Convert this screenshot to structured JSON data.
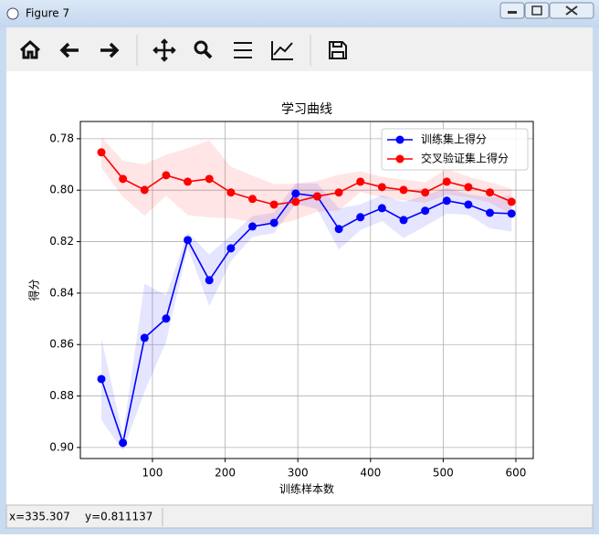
{
  "window": {
    "title": "Figure 7"
  },
  "status": {
    "x": "x=335.307",
    "y": "y=0.811137"
  },
  "chart_data": {
    "type": "line",
    "title": "学习曲线",
    "x_label": "训练样本数",
    "y_label": "得分",
    "x": [
      29.7,
      59.4,
      89.1,
      118.8,
      148.5,
      178.2,
      207.9,
      237.6,
      267.3,
      297,
      326.7,
      356.4,
      386.1,
      415.8,
      445.5,
      475.2,
      504.9,
      534.6,
      564.3,
      594
    ],
    "series": [
      {
        "name": "训练集上得分",
        "color": "#0000ff",
        "band_color": "rgba(0,0,255,0.1)",
        "values": [
          0.8734,
          0.8982,
          0.8574,
          0.8499,
          0.8194,
          0.835,
          0.8226,
          0.8141,
          0.8127,
          0.8013,
          0.8024,
          0.8151,
          0.8105,
          0.807,
          0.8116,
          0.808,
          0.8041,
          0.8056,
          0.8088,
          0.8091
        ],
        "std": [
          0.016,
          0.003,
          0.021,
          0.009,
          0.003,
          0.01,
          0.005,
          0.004,
          0.004,
          0.004,
          0.005,
          0.008,
          0.005,
          0.005,
          0.007,
          0.006,
          0.005,
          0.004,
          0.006,
          0.007
        ]
      },
      {
        "name": "交叉验证集上得分",
        "color": "#ff0000",
        "band_color": "rgba(255,0,0,0.1)",
        "values": [
          0.7853,
          0.7956,
          0.7999,
          0.7942,
          0.7967,
          0.7956,
          0.8009,
          0.8034,
          0.8056,
          0.8045,
          0.8024,
          0.8009,
          0.7967,
          0.7988,
          0.7999,
          0.8009,
          0.7967,
          0.7988,
          0.8009,
          0.8045
        ],
        "std": [
          0.006,
          0.007,
          0.01,
          0.008,
          0.013,
          0.015,
          0.01,
          0.009,
          0.008,
          0.007,
          0.006,
          0.007,
          0.004,
          0.004,
          0.004,
          0.004,
          0.005,
          0.004,
          0.004,
          0.005
        ]
      }
    ],
    "xlim": [
      0.8,
      623.9
    ],
    "xticks": [
      100,
      200,
      300,
      400,
      500,
      600
    ],
    "ylim": [
      0.7733,
      0.9043
    ],
    "y_inverted": true,
    "yticks": [
      0.78,
      {
        "value": 0.8,
        "label": "0.80"
      },
      0.82,
      0.84,
      0.86,
      0.88,
      {
        "value": 0.9,
        "label": "0.90"
      }
    ],
    "grid": true,
    "legend": "upper right"
  }
}
